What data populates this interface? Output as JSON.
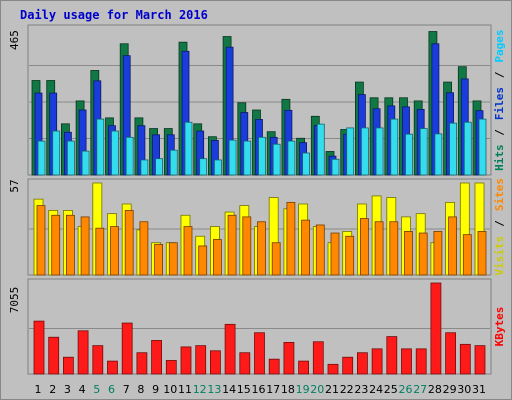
{
  "title": "Daily usage for March 2016",
  "chart_data": [
    {
      "type": "bar",
      "panel": "pages-files-hits",
      "scale_label": "465",
      "ylim": [
        0,
        465
      ],
      "categories": [
        "1",
        "2",
        "3",
        "4",
        "5",
        "6",
        "7",
        "8",
        "9",
        "10",
        "11",
        "12",
        "13",
        "14",
        "15",
        "16",
        "17",
        "18",
        "19",
        "20",
        "21",
        "22",
        "23",
        "24",
        "25",
        "26",
        "27",
        "28",
        "29",
        "30",
        "31"
      ],
      "weekend_days": [
        "5",
        "6",
        "12",
        "13",
        "19",
        "20",
        "26",
        "27"
      ],
      "grid": true,
      "legend_position": "right",
      "legend_items": [
        {
          "label": "Hits",
          "color": "#00805a"
        },
        {
          "label": "/",
          "color": "#000000"
        },
        {
          "label": "Files",
          "color": "#0033cc"
        },
        {
          "label": "/",
          "color": "#000000"
        },
        {
          "label": "Pages",
          "color": "#00ccff"
        }
      ],
      "series": [
        {
          "name": "Hits",
          "color": "#117744",
          "values": [
            301,
            301,
            163,
            236,
            333,
            182,
            418,
            182,
            148,
            148,
            423,
            163,
            122,
            441,
            230,
            207,
            138,
            241,
            117,
            187,
            75,
            145,
            296,
            246,
            246,
            246,
            236,
            457,
            296,
            345,
            236
          ]
        },
        {
          "name": "Files",
          "color": "#1a3cdb",
          "values": [
            261,
            261,
            136,
            207,
            300,
            157,
            380,
            157,
            128,
            128,
            394,
            140,
            110,
            407,
            199,
            177,
            120,
            206,
            103,
            158,
            60,
            130,
            256,
            211,
            220,
            217,
            209,
            418,
            262,
            306,
            205
          ]
        },
        {
          "name": "Pages",
          "color": "#33ddee",
          "values": [
            108,
            140,
            108,
            76,
            178,
            140,
            120,
            48,
            52,
            79,
            168,
            52,
            48,
            111,
            108,
            120,
            98,
            108,
            70,
            162,
            50,
            150,
            150,
            150,
            178,
            130,
            148,
            131,
            165,
            168,
            178
          ]
        }
      ]
    },
    {
      "type": "bar",
      "panel": "sites-visits",
      "scale_label": "57",
      "ylim": [
        0,
        57
      ],
      "grid": true,
      "legend_position": "right",
      "legend_items": [
        {
          "label": "Visits",
          "color": "#cccc00"
        },
        {
          "label": "/",
          "color": "#000000"
        },
        {
          "label": "Sites",
          "color": "#ff8800"
        }
      ],
      "series": [
        {
          "name": "Visits",
          "color": "#ffff00",
          "values": [
            47,
            40,
            40,
            30,
            57,
            38,
            44,
            28,
            20,
            20,
            37,
            24,
            30,
            39,
            43,
            30,
            48,
            41,
            44,
            30,
            20,
            27,
            44,
            49,
            48,
            36,
            38,
            20,
            45,
            57,
            57
          ]
        },
        {
          "name": "Sites",
          "color": "#ff8800",
          "values": [
            43,
            37,
            37,
            36,
            29,
            30,
            40,
            33,
            19,
            20,
            30,
            18,
            22,
            37,
            36,
            33,
            20,
            45,
            34,
            31,
            26,
            24,
            35,
            33,
            33,
            27,
            26,
            27,
            36,
            25,
            27
          ]
        }
      ]
    },
    {
      "type": "bar",
      "panel": "kbytes",
      "scale_label": "7055",
      "ylim": [
        0,
        7055
      ],
      "grid": true,
      "legend_position": "right",
      "legend_items": [
        {
          "label": "KBytes",
          "color": "#ff0000"
        }
      ],
      "series": [
        {
          "name": "KBytes",
          "color": "#ff1a1a",
          "values": [
            4100,
            2850,
            1300,
            3350,
            2200,
            1000,
            3950,
            1650,
            2600,
            1050,
            2100,
            2200,
            1800,
            3850,
            1650,
            3200,
            1150,
            2450,
            1000,
            2500,
            750,
            1300,
            1650,
            1950,
            2900,
            1950,
            1950,
            7055,
            3200,
            2300,
            2200
          ]
        }
      ]
    }
  ]
}
